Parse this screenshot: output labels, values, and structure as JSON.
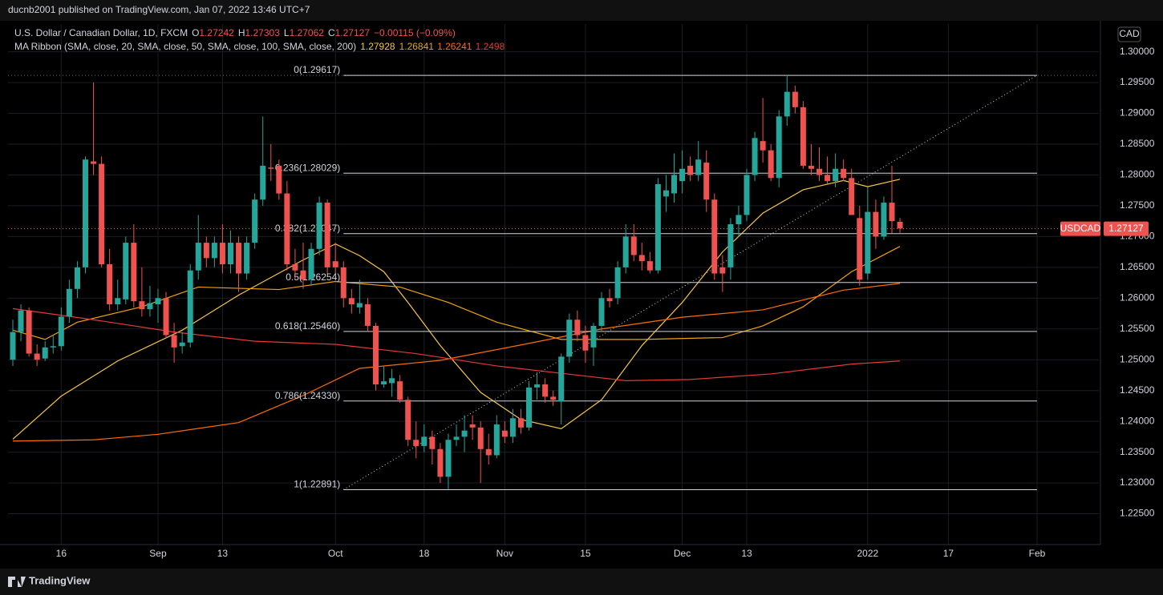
{
  "header": {
    "publisher": "ducnb2001 published on TradingView.com, Jan 07, 2022 13:46 UTC+7",
    "currency_button": "CAD",
    "footer": "TradingView"
  },
  "chart_data": {
    "type": "candlestick",
    "symbol_line": "U.S. Dollar / Canadian Dollar, 1D, FXCM",
    "ohlc": [
      {
        "label": "O",
        "value": "1.27242"
      },
      {
        "label": "H",
        "value": "1.27303"
      },
      {
        "label": "L",
        "value": "1.27062"
      },
      {
        "label": "C",
        "value": "1.27127"
      }
    ],
    "change": "−0.00115 (−0.09%)",
    "ma_title": "MA Ribbon (SMA, close, 20, SMA, close, 50, SMA, close, 100, SMA, close, 200)",
    "up_color": "#26a69a",
    "down_color": "#ef5350",
    "candles": [
      [
        1.25,
        1.2565,
        1.249,
        1.2545
      ],
      [
        1.2545,
        1.259,
        1.253,
        1.258
      ],
      [
        1.258,
        1.2585,
        1.2505,
        1.251
      ],
      [
        1.251,
        1.2525,
        1.249,
        1.25
      ],
      [
        1.2502,
        1.253,
        1.2498,
        1.252
      ],
      [
        1.252,
        1.254,
        1.251,
        1.2522
      ],
      [
        1.2522,
        1.2585,
        1.2515,
        1.257
      ],
      [
        1.257,
        1.263,
        1.256,
        1.2615
      ],
      [
        1.2615,
        1.266,
        1.26,
        1.265
      ],
      [
        1.265,
        1.283,
        1.264,
        1.2825
      ],
      [
        1.2822,
        1.295,
        1.28,
        1.2818
      ],
      [
        1.2818,
        1.283,
        1.265,
        1.2655
      ],
      [
        1.2655,
        1.268,
        1.258,
        1.259
      ],
      [
        1.259,
        1.263,
        1.258,
        1.26
      ],
      [
        1.2598,
        1.27,
        1.259,
        1.269
      ],
      [
        1.269,
        1.272,
        1.2585,
        1.2595
      ],
      [
        1.2595,
        1.265,
        1.257,
        1.2582
      ],
      [
        1.2582,
        1.262,
        1.257,
        1.2592
      ],
      [
        1.259,
        1.2615,
        1.256,
        1.26
      ],
      [
        1.26,
        1.261,
        1.2535,
        1.254
      ],
      [
        1.254,
        1.256,
        1.2495,
        1.252
      ],
      [
        1.2522,
        1.2545,
        1.251,
        1.2528
      ],
      [
        1.2528,
        1.2655,
        1.252,
        1.2645
      ],
      [
        1.2645,
        1.2735,
        1.263,
        1.269
      ],
      [
        1.269,
        1.27,
        1.265,
        1.2665
      ],
      [
        1.2665,
        1.27,
        1.265,
        1.269
      ],
      [
        1.269,
        1.272,
        1.264,
        1.2655
      ],
      [
        1.2655,
        1.271,
        1.264,
        1.269
      ],
      [
        1.269,
        1.27,
        1.261,
        1.264
      ],
      [
        1.264,
        1.27,
        1.263,
        1.269
      ],
      [
        1.269,
        1.277,
        1.268,
        1.276
      ],
      [
        1.276,
        1.2895,
        1.275,
        1.2815
      ],
      [
        1.2812,
        1.285,
        1.279,
        1.281
      ],
      [
        1.2815,
        1.2825,
        1.276,
        1.277
      ],
      [
        1.277,
        1.279,
        1.2645,
        1.2655
      ],
      [
        1.2655,
        1.268,
        1.263,
        1.2645
      ],
      [
        1.2645,
        1.269,
        1.2615,
        1.263
      ],
      [
        1.263,
        1.269,
        1.262,
        1.268
      ],
      [
        1.268,
        1.2765,
        1.267,
        1.2755
      ],
      [
        1.2755,
        1.276,
        1.264,
        1.265
      ],
      [
        1.266,
        1.269,
        1.264,
        1.265
      ],
      [
        1.265,
        1.266,
        1.2585,
        1.26
      ],
      [
        1.26,
        1.2615,
        1.2575,
        1.259
      ],
      [
        1.2585,
        1.263,
        1.2575,
        1.2592
      ],
      [
        1.259,
        1.26,
        1.2545,
        1.2555
      ],
      [
        1.2555,
        1.256,
        1.245,
        1.246
      ],
      [
        1.246,
        1.249,
        1.2455,
        1.2465
      ],
      [
        1.2462,
        1.2485,
        1.244,
        1.247
      ],
      [
        1.2465,
        1.2475,
        1.243,
        1.2435
      ],
      [
        1.2435,
        1.244,
        1.236,
        1.237
      ],
      [
        1.237,
        1.24,
        1.234,
        1.236
      ],
      [
        1.236,
        1.2395,
        1.235,
        1.2375
      ],
      [
        1.2375,
        1.2385,
        1.233,
        1.2355
      ],
      [
        1.2355,
        1.2365,
        1.23,
        1.231
      ],
      [
        1.231,
        1.238,
        1.229,
        1.237
      ],
      [
        1.237,
        1.2395,
        1.236,
        1.2375
      ],
      [
        1.2375,
        1.241,
        1.235,
        1.2385
      ],
      [
        1.2395,
        1.241,
        1.237,
        1.239
      ],
      [
        1.239,
        1.24,
        1.23,
        1.2355
      ],
      [
        1.2355,
        1.238,
        1.233,
        1.2345
      ],
      [
        1.2345,
        1.241,
        1.234,
        1.2395
      ],
      [
        1.2385,
        1.24,
        1.2365,
        1.2375
      ],
      [
        1.2375,
        1.242,
        1.2365,
        1.2405
      ],
      [
        1.2405,
        1.242,
        1.238,
        1.239
      ],
      [
        1.239,
        1.2465,
        1.2385,
        1.2455
      ],
      [
        1.2455,
        1.248,
        1.2435,
        1.246
      ],
      [
        1.246,
        1.247,
        1.243,
        1.244
      ],
      [
        1.244,
        1.245,
        1.2425,
        1.2435
      ],
      [
        1.2432,
        1.251,
        1.2395,
        1.2505
      ],
      [
        1.2505,
        1.2575,
        1.2495,
        1.2565
      ],
      [
        1.2565,
        1.258,
        1.253,
        1.254
      ],
      [
        1.254,
        1.2555,
        1.2495,
        1.2515
      ],
      [
        1.252,
        1.256,
        1.249,
        1.2555
      ],
      [
        1.2555,
        1.261,
        1.2545,
        1.26
      ],
      [
        1.26,
        1.2615,
        1.2585,
        1.2595
      ],
      [
        1.26,
        1.266,
        1.259,
        1.265
      ],
      [
        1.265,
        1.272,
        1.264,
        1.27
      ],
      [
        1.27,
        1.272,
        1.266,
        1.267
      ],
      [
        1.267,
        1.269,
        1.2645,
        1.266
      ],
      [
        1.266,
        1.2675,
        1.264,
        1.2645
      ],
      [
        1.2645,
        1.2795,
        1.264,
        1.2785
      ],
      [
        1.2765,
        1.28,
        1.274,
        1.2775
      ],
      [
        1.277,
        1.2835,
        1.2755,
        1.28
      ],
      [
        1.279,
        1.284,
        1.277,
        1.281
      ],
      [
        1.2815,
        1.283,
        1.279,
        1.28
      ],
      [
        1.28,
        1.2855,
        1.279,
        1.2825
      ],
      [
        1.282,
        1.284,
        1.274,
        1.276
      ],
      [
        1.276,
        1.277,
        1.263,
        1.264
      ],
      [
        1.265,
        1.267,
        1.261,
        1.264
      ],
      [
        1.265,
        1.273,
        1.263,
        1.272
      ],
      [
        1.272,
        1.275,
        1.27,
        1.2735
      ],
      [
        1.2735,
        1.281,
        1.2725,
        1.28
      ],
      [
        1.28,
        1.287,
        1.279,
        1.286
      ],
      [
        1.2855,
        1.2925,
        1.282,
        1.284
      ],
      [
        1.284,
        1.285,
        1.279,
        1.2795
      ],
      [
        1.2795,
        1.2905,
        1.278,
        1.2895
      ],
      [
        1.2895,
        1.2962,
        1.288,
        1.2935
      ],
      [
        1.2935,
        1.2945,
        1.29,
        1.291
      ],
      [
        1.291,
        1.292,
        1.281,
        1.2815
      ],
      [
        1.2815,
        1.285,
        1.28,
        1.281
      ],
      [
        1.281,
        1.2845,
        1.279,
        1.28
      ],
      [
        1.28,
        1.283,
        1.2785,
        1.279
      ],
      [
        1.279,
        1.2835,
        1.278,
        1.281
      ],
      [
        1.281,
        1.2825,
        1.279,
        1.2795
      ],
      [
        1.2795,
        1.281,
        1.2735,
        1.2735
      ],
      [
        1.273,
        1.275,
        1.262,
        1.263
      ],
      [
        1.264,
        1.278,
        1.263,
        1.274
      ],
      [
        1.274,
        1.276,
        1.268,
        1.27
      ],
      [
        1.27,
        1.2765,
        1.2695,
        1.2755
      ],
      [
        1.2755,
        1.2815,
        1.2705,
        1.2725
      ],
      [
        1.2724,
        1.273,
        1.2706,
        1.2713
      ]
    ],
    "xlim": [
      -0.6,
      134.8
    ],
    "xticks": [
      {
        "value": 6,
        "label": "16"
      },
      {
        "value": 18,
        "label": "Sep"
      },
      {
        "value": 26,
        "label": "13"
      },
      {
        "value": 40,
        "label": "Oct"
      },
      {
        "value": 51,
        "label": "18"
      },
      {
        "value": 61,
        "label": "Nov"
      },
      {
        "value": 71,
        "label": "15"
      },
      {
        "value": 83,
        "label": "Dec"
      },
      {
        "value": 91,
        "label": "13"
      },
      {
        "value": 106,
        "label": "2022"
      },
      {
        "value": 116,
        "label": "17"
      },
      {
        "value": 127,
        "label": "Feb"
      }
    ],
    "ylim": [
      1.22,
      1.3045
    ],
    "yticks": [
      {
        "value": 1.225,
        "label": "1.22500"
      },
      {
        "value": 1.23,
        "label": "1.23000"
      },
      {
        "value": 1.235,
        "label": "1.23500"
      },
      {
        "value": 1.24,
        "label": "1.24000"
      },
      {
        "value": 1.245,
        "label": "1.24500"
      },
      {
        "value": 1.25,
        "label": "1.25000"
      },
      {
        "value": 1.255,
        "label": "1.25500"
      },
      {
        "value": 1.26,
        "label": "1.26000"
      },
      {
        "value": 1.265,
        "label": "1.26500"
      },
      {
        "value": 1.27,
        "label": "1.27000"
      },
      {
        "value": 1.275,
        "label": "1.27500"
      },
      {
        "value": 1.28,
        "label": "1.28000"
      },
      {
        "value": 1.285,
        "label": "1.28500"
      },
      {
        "value": 1.29,
        "label": "1.29000"
      },
      {
        "value": 1.295,
        "label": "1.29500"
      },
      {
        "value": 1.3,
        "label": "1.30000"
      }
    ],
    "grid": true,
    "last_price": {
      "value": 1.27127,
      "label": "1.27127",
      "symbol": "USDCAD"
    },
    "fib": {
      "start": 41,
      "end": 127,
      "levels": [
        {
          "value": 1.29617,
          "label": "0(1.29617)"
        },
        {
          "value": 1.28029,
          "label": "0.236(1.28029)"
        },
        {
          "value": 1.27047,
          "label": "0.382(1.27047)"
        },
        {
          "value": 1.26254,
          "label": "0.5(1.26254)"
        },
        {
          "value": 1.2546,
          "label": "0.618(1.25460)"
        },
        {
          "value": 1.2433,
          "label": "0.786(1.24330)"
        },
        {
          "value": 1.22891,
          "label": "1(1.22891)"
        }
      ]
    },
    "series": [
      {
        "color": "#f7c548",
        "last": 1.27928,
        "x": [
          0,
          6,
          13,
          21,
          28,
          36,
          40,
          43,
          46,
          49,
          53,
          58,
          63,
          68,
          73,
          78,
          83,
          88,
          93,
          98,
          103,
          106,
          110
        ],
        "values": [
          1.2371,
          1.2441,
          1.2498,
          1.2548,
          1.2605,
          1.2662,
          1.2688,
          1.2669,
          1.2643,
          1.2593,
          1.2523,
          1.2447,
          1.2403,
          1.2388,
          1.2435,
          1.2523,
          1.2593,
          1.2675,
          1.2738,
          1.2776,
          1.2791,
          1.2781,
          1.2793
        ]
      },
      {
        "color": "#f0a30a",
        "last": 1.26841,
        "x": [
          0,
          4,
          8,
          16,
          23,
          33,
          40,
          48,
          54,
          60,
          68,
          78,
          88,
          93,
          98,
          104,
          110
        ],
        "values": [
          1.2548,
          1.2533,
          1.2561,
          1.2586,
          1.2618,
          1.2614,
          1.2627,
          1.2618,
          1.2593,
          1.2561,
          1.2533,
          1.2533,
          1.2536,
          1.2555,
          1.2586,
          1.2643,
          1.2684
        ]
      },
      {
        "color": "#ff6d00",
        "last": 1.26241,
        "x": [
          0,
          10,
          18,
          28,
          36,
          43,
          53,
          63,
          73,
          83,
          93,
          103,
          110
        ],
        "values": [
          1.2368,
          1.237,
          1.2379,
          1.2398,
          1.2442,
          1.2486,
          1.2499,
          1.2524,
          1.255,
          1.2569,
          1.2581,
          1.2613,
          1.2624
        ]
      },
      {
        "color": "#e53935",
        "last": 1.2498,
        "x": [
          0,
          10,
          20,
          30,
          40,
          50,
          60,
          70,
          76,
          84,
          94,
          104,
          110
        ],
        "values": [
          1.2583,
          1.2565,
          1.2545,
          1.253,
          1.2525,
          1.251,
          1.249,
          1.2475,
          1.2466,
          1.2468,
          1.2477,
          1.2493,
          1.2498
        ]
      }
    ]
  }
}
